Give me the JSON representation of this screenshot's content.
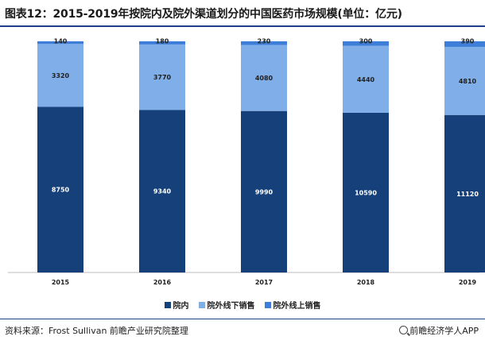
{
  "title": "图表12：2015-2019年按院内及院外渠道划分的中国医药市场规模(单位：亿元)",
  "source": "资料来源：Frost Sullivan 前瞻产业研究院整理",
  "brand": "前瞻经济学人APP",
  "colors": {
    "inhospital": "#15407a",
    "offline": "#7faee8",
    "online": "#3e7ed8",
    "label_dark": "#ffffff",
    "label_light": "#222222"
  },
  "chart_data": {
    "type": "bar",
    "stacked": "percent",
    "categories": [
      "2015",
      "2016",
      "2017",
      "2018",
      "2019"
    ],
    "series": [
      {
        "name": "院内",
        "values": [
          8750,
          9340,
          9990,
          10590,
          11120
        ],
        "color": "#15407a"
      },
      {
        "name": "院外线下销售",
        "values": [
          3320,
          3770,
          4080,
          4440,
          4810
        ],
        "color": "#7faee8"
      },
      {
        "name": "院外线上销售",
        "values": [
          140,
          180,
          230,
          300,
          390
        ],
        "color": "#3e7ed8"
      }
    ],
    "title": "图表12：2015-2019年按院内及院外渠道划分的中国医药市场规模(单位：亿元)",
    "ylabel": "",
    "xlabel": "",
    "legend": "bottom",
    "grid": false
  }
}
